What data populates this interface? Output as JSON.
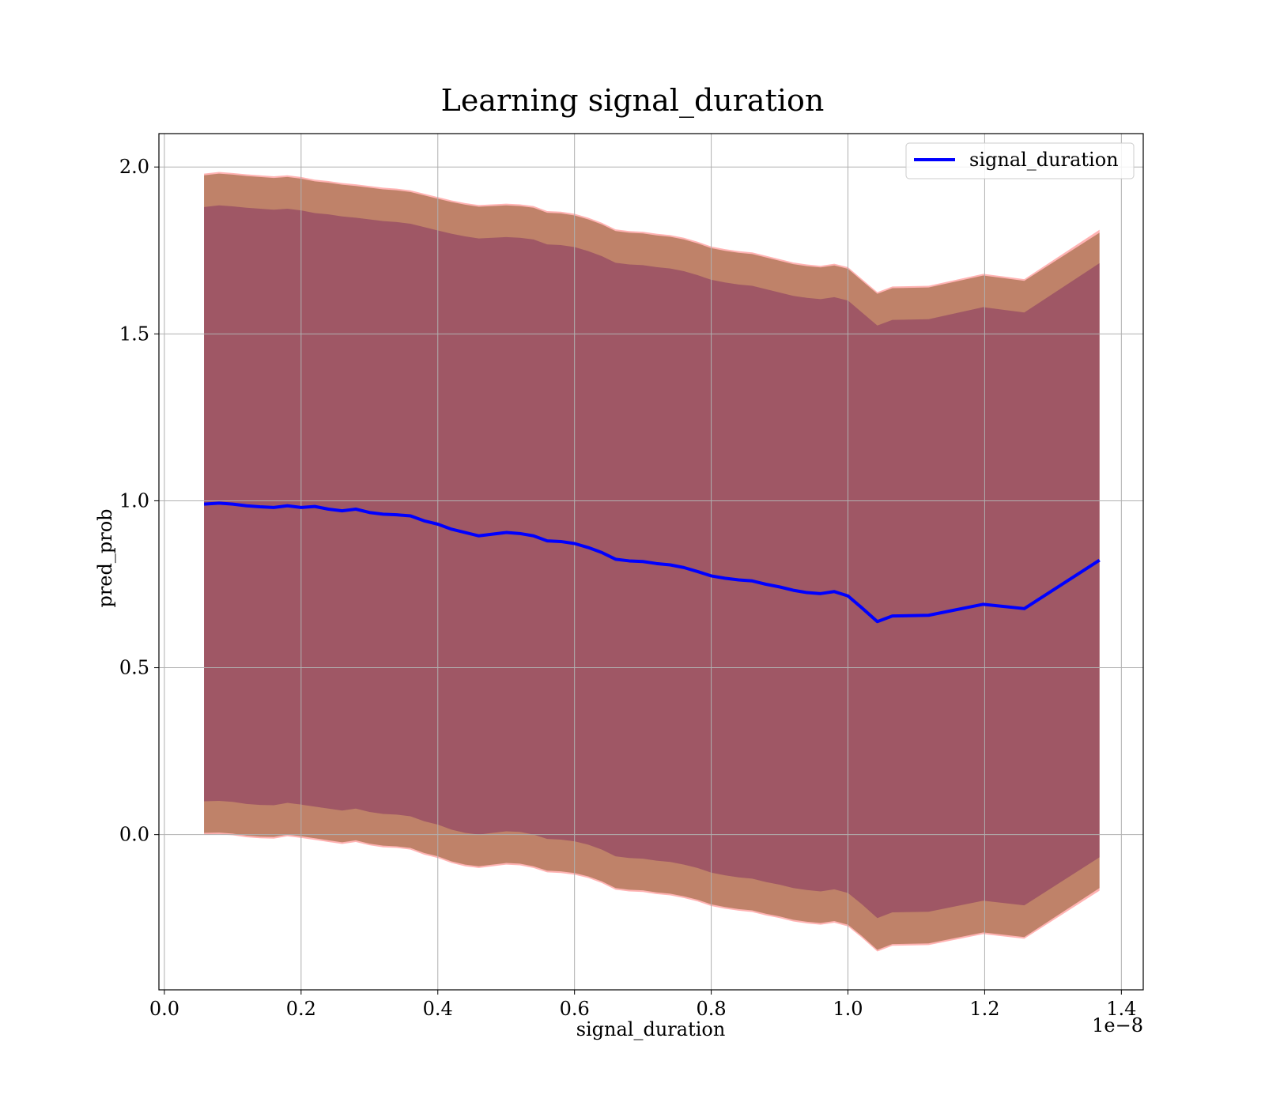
{
  "chart_data": {
    "type": "line",
    "title": "Learning signal_duration",
    "xlabel": "signal_duration",
    "ylabel": "pred_prob",
    "x_offset_text": "1e−8",
    "xlim": [
      -0.008,
      1.432
    ],
    "ylim": [
      -0.465,
      2.1
    ],
    "grid": true,
    "legend_position": "top-right",
    "x_ticks": [
      {
        "value": 0.0,
        "label": "0.0"
      },
      {
        "value": 0.2,
        "label": "0.2"
      },
      {
        "value": 0.4,
        "label": "0.4"
      },
      {
        "value": 0.6,
        "label": "0.6"
      },
      {
        "value": 0.8,
        "label": "0.8"
      },
      {
        "value": 1.0,
        "label": "1.0"
      },
      {
        "value": 1.2,
        "label": "1.2"
      },
      {
        "value": 1.4,
        "label": "1.4"
      }
    ],
    "y_ticks": [
      {
        "value": 0.0,
        "label": "0.0"
      },
      {
        "value": 0.5,
        "label": "0.5"
      },
      {
        "value": 1.0,
        "label": "1.0"
      },
      {
        "value": 1.5,
        "label": "1.5"
      },
      {
        "value": 2.0,
        "label": "2.0"
      }
    ],
    "x": [
      0.058,
      0.08,
      0.1,
      0.12,
      0.14,
      0.16,
      0.18,
      0.2,
      0.22,
      0.24,
      0.26,
      0.28,
      0.3,
      0.32,
      0.34,
      0.36,
      0.38,
      0.4,
      0.42,
      0.44,
      0.46,
      0.48,
      0.5,
      0.52,
      0.54,
      0.56,
      0.58,
      0.6,
      0.62,
      0.64,
      0.66,
      0.68,
      0.7,
      0.72,
      0.74,
      0.76,
      0.78,
      0.8,
      0.82,
      0.84,
      0.86,
      0.88,
      0.9,
      0.92,
      0.94,
      0.96,
      0.98,
      1.0,
      1.02,
      1.043,
      1.065,
      1.118,
      1.198,
      1.258,
      1.368
    ],
    "series": [
      {
        "name": "signal_duration",
        "color": "#0000ff",
        "values": [
          0.99,
          0.993,
          0.99,
          0.985,
          0.982,
          0.98,
          0.985,
          0.98,
          0.983,
          0.975,
          0.97,
          0.975,
          0.965,
          0.96,
          0.958,
          0.955,
          0.94,
          0.93,
          0.915,
          0.905,
          0.895,
          0.9,
          0.905,
          0.902,
          0.895,
          0.88,
          0.878,
          0.872,
          0.86,
          0.845,
          0.825,
          0.82,
          0.818,
          0.812,
          0.808,
          0.8,
          0.788,
          0.775,
          0.768,
          0.763,
          0.76,
          0.75,
          0.742,
          0.732,
          0.725,
          0.722,
          0.728,
          0.715,
          0.68,
          0.638,
          0.655,
          0.657,
          0.69,
          0.677,
          0.822
        ]
      }
    ],
    "bands": [
      {
        "color": "#ff9999",
        "upper": [
          1.98,
          1.985,
          1.982,
          1.978,
          1.975,
          1.972,
          1.975,
          1.97,
          1.962,
          1.958,
          1.952,
          1.948,
          1.943,
          1.938,
          1.935,
          1.93,
          1.92,
          1.91,
          1.9,
          1.892,
          1.886,
          1.888,
          1.89,
          1.888,
          1.883,
          1.868,
          1.866,
          1.86,
          1.848,
          1.833,
          1.813,
          1.808,
          1.806,
          1.8,
          1.796,
          1.788,
          1.776,
          1.762,
          1.754,
          1.748,
          1.744,
          1.734,
          1.724,
          1.714,
          1.708,
          1.704,
          1.71,
          1.7,
          1.665,
          1.625,
          1.642,
          1.644,
          1.68,
          1.664,
          1.812
        ],
        "lower": [
          0.0,
          0.001,
          -0.002,
          -0.008,
          -0.011,
          -0.012,
          -0.005,
          -0.01,
          -0.016,
          -0.022,
          -0.028,
          -0.022,
          -0.032,
          -0.038,
          -0.04,
          -0.045,
          -0.06,
          -0.07,
          -0.085,
          -0.095,
          -0.1,
          -0.095,
          -0.09,
          -0.092,
          -0.1,
          -0.113,
          -0.115,
          -0.12,
          -0.13,
          -0.145,
          -0.165,
          -0.17,
          -0.172,
          -0.178,
          -0.182,
          -0.19,
          -0.2,
          -0.214,
          -0.222,
          -0.228,
          -0.232,
          -0.242,
          -0.25,
          -0.26,
          -0.266,
          -0.27,
          -0.264,
          -0.275,
          -0.308,
          -0.35,
          -0.333,
          -0.331,
          -0.298,
          -0.312,
          -0.168
        ]
      },
      {
        "color": "#8b5a2b",
        "upper": [
          1.975,
          1.98,
          1.977,
          1.973,
          1.97,
          1.967,
          1.97,
          1.965,
          1.957,
          1.953,
          1.947,
          1.943,
          1.938,
          1.933,
          1.93,
          1.925,
          1.915,
          1.905,
          1.895,
          1.887,
          1.881,
          1.883,
          1.885,
          1.883,
          1.878,
          1.863,
          1.861,
          1.855,
          1.843,
          1.828,
          1.808,
          1.803,
          1.801,
          1.795,
          1.791,
          1.783,
          1.771,
          1.757,
          1.749,
          1.743,
          1.739,
          1.729,
          1.719,
          1.709,
          1.703,
          1.699,
          1.705,
          1.695,
          1.66,
          1.62,
          1.637,
          1.639,
          1.675,
          1.659,
          1.803
        ],
        "lower": [
          0.005,
          0.006,
          0.003,
          -0.003,
          -0.006,
          -0.007,
          0.0,
          -0.005,
          -0.011,
          -0.017,
          -0.023,
          -0.017,
          -0.027,
          -0.033,
          -0.035,
          -0.04,
          -0.055,
          -0.065,
          -0.08,
          -0.09,
          -0.095,
          -0.09,
          -0.085,
          -0.087,
          -0.095,
          -0.108,
          -0.11,
          -0.115,
          -0.125,
          -0.14,
          -0.16,
          -0.165,
          -0.167,
          -0.173,
          -0.177,
          -0.185,
          -0.195,
          -0.209,
          -0.217,
          -0.223,
          -0.227,
          -0.237,
          -0.245,
          -0.255,
          -0.261,
          -0.265,
          -0.259,
          -0.27,
          -0.303,
          -0.345,
          -0.328,
          -0.326,
          -0.293,
          -0.307,
          -0.16
        ]
      },
      {
        "color": "#8b3a62",
        "upper": [
          1.88,
          1.885,
          1.882,
          1.878,
          1.875,
          1.872,
          1.875,
          1.87,
          1.862,
          1.858,
          1.852,
          1.848,
          1.843,
          1.838,
          1.835,
          1.83,
          1.82,
          1.81,
          1.8,
          1.792,
          1.786,
          1.788,
          1.79,
          1.788,
          1.783,
          1.768,
          1.766,
          1.76,
          1.748,
          1.733,
          1.713,
          1.708,
          1.706,
          1.7,
          1.696,
          1.688,
          1.676,
          1.662,
          1.654,
          1.648,
          1.644,
          1.634,
          1.624,
          1.614,
          1.608,
          1.604,
          1.61,
          1.6,
          1.565,
          1.525,
          1.542,
          1.544,
          1.58,
          1.564,
          1.712
        ],
        "lower": [
          0.1,
          0.101,
          0.098,
          0.092,
          0.089,
          0.088,
          0.095,
          0.09,
          0.084,
          0.078,
          0.072,
          0.078,
          0.068,
          0.062,
          0.06,
          0.055,
          0.04,
          0.03,
          0.015,
          0.005,
          0.0,
          0.005,
          0.01,
          0.008,
          0.0,
          -0.013,
          -0.015,
          -0.02,
          -0.03,
          -0.045,
          -0.065,
          -0.07,
          -0.072,
          -0.078,
          -0.082,
          -0.09,
          -0.1,
          -0.114,
          -0.122,
          -0.128,
          -0.132,
          -0.142,
          -0.15,
          -0.16,
          -0.166,
          -0.17,
          -0.164,
          -0.175,
          -0.208,
          -0.25,
          -0.233,
          -0.231,
          -0.198,
          -0.212,
          -0.068
        ]
      }
    ]
  }
}
